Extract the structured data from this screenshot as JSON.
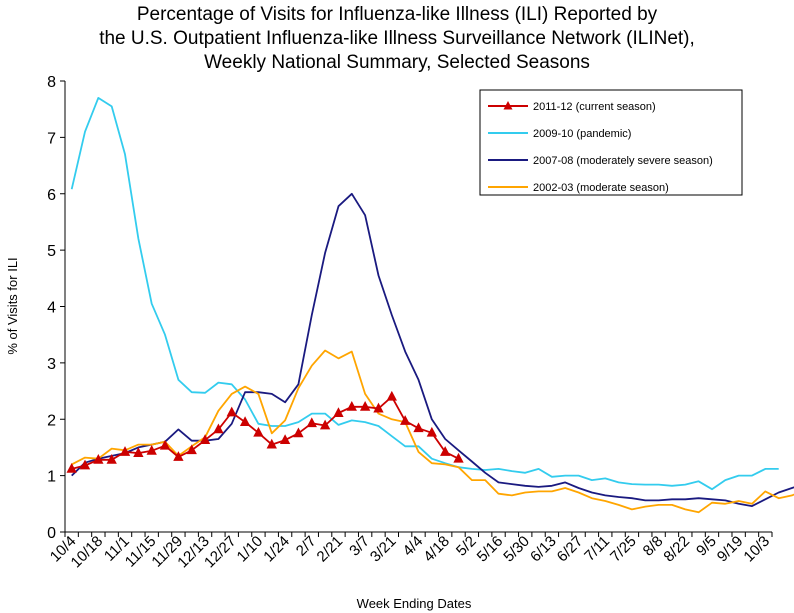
{
  "chart_data": {
    "type": "line",
    "title": [
      "Percentage of Visits for Influenza-like Illness (ILI) Reported by",
      "the U.S. Outpatient Influenza-like Illness Surveillance Network (ILINet),",
      "Weekly National Summary, Selected Seasons"
    ],
    "xlabel": "Week Ending Dates",
    "ylabel": "% of Visits for ILI",
    "ylim": [
      0,
      8
    ],
    "yticks": [
      0,
      1,
      2,
      3,
      4,
      5,
      6,
      7,
      8
    ],
    "x_tick_labels": [
      "10/4",
      "10/18",
      "11/1",
      "11/15",
      "11/29",
      "12/13",
      "12/27",
      "1/10",
      "1/24",
      "2/7",
      "2/21",
      "3/7",
      "3/21",
      "4/4",
      "4/18",
      "5/2",
      "5/16",
      "5/30",
      "6/13",
      "6/27",
      "7/11",
      "7/25",
      "8/8",
      "8/22",
      "9/5",
      "9/19",
      "10/3"
    ],
    "grid": false,
    "legend_position": "top-right",
    "series": [
      {
        "name": "2011-12 (current season)",
        "color": "#cc0000",
        "marker": "triangle",
        "values": [
          1.12,
          1.18,
          1.28,
          1.28,
          1.42,
          1.4,
          1.44,
          1.53,
          1.33,
          1.45,
          1.63,
          1.82,
          2.12,
          1.95,
          1.76,
          1.55,
          1.63,
          1.75,
          1.93,
          1.89,
          2.11,
          2.22,
          2.22,
          2.19,
          2.4,
          1.97,
          1.84,
          1.76,
          1.42,
          1.3
        ]
      },
      {
        "name": "2009-10 (pandemic)",
        "color": "#33ccee",
        "values": [
          6.08,
          7.1,
          7.7,
          7.55,
          6.7,
          5.2,
          4.05,
          3.5,
          2.7,
          2.48,
          2.47,
          2.65,
          2.62,
          2.35,
          1.92,
          1.88,
          1.88,
          1.95,
          2.1,
          2.1,
          1.9,
          1.98,
          1.95,
          1.88,
          1.7,
          1.52,
          1.52,
          1.3,
          1.22,
          1.15,
          1.12,
          1.1,
          1.12,
          1.08,
          1.05,
          1.12,
          0.98,
          1.0,
          1.0,
          0.92,
          0.95,
          0.88,
          0.85,
          0.84,
          0.84,
          0.82,
          0.84,
          0.9,
          0.76,
          0.92,
          1.0,
          1.0,
          1.12,
          1.12
        ]
      },
      {
        "name": "2007-08 (moderately severe season)",
        "color": "#1a1a80",
        "values": [
          1.0,
          1.23,
          1.3,
          1.35,
          1.4,
          1.5,
          1.55,
          1.6,
          1.82,
          1.62,
          1.62,
          1.65,
          1.92,
          2.48,
          2.48,
          2.45,
          2.3,
          2.62,
          3.85,
          4.95,
          5.78,
          6.0,
          5.62,
          4.55,
          3.85,
          3.2,
          2.7,
          2.0,
          1.65,
          1.45,
          1.25,
          1.05,
          0.88,
          0.85,
          0.82,
          0.8,
          0.82,
          0.88,
          0.78,
          0.7,
          0.65,
          0.62,
          0.6,
          0.56,
          0.56,
          0.58,
          0.58,
          0.6,
          0.58,
          0.56,
          0.5,
          0.46,
          0.58,
          0.7,
          0.78,
          0.86
        ]
      },
      {
        "name": "2002-03 (moderate season)",
        "color": "#ffa500",
        "values": [
          1.2,
          1.32,
          1.3,
          1.48,
          1.45,
          1.55,
          1.55,
          1.6,
          1.35,
          1.52,
          1.68,
          2.15,
          2.45,
          2.58,
          2.45,
          1.75,
          1.98,
          2.55,
          2.95,
          3.22,
          3.08,
          3.2,
          2.45,
          2.1,
          2.0,
          1.95,
          1.42,
          1.22,
          1.2,
          1.15,
          0.92,
          0.92,
          0.68,
          0.65,
          0.7,
          0.72,
          0.72,
          0.78,
          0.7,
          0.6,
          0.55,
          0.48,
          0.4,
          0.45,
          0.48,
          0.48,
          0.4,
          0.35,
          0.52,
          0.5,
          0.55,
          0.5,
          0.72,
          0.6,
          0.65,
          0.75
        ]
      }
    ]
  }
}
